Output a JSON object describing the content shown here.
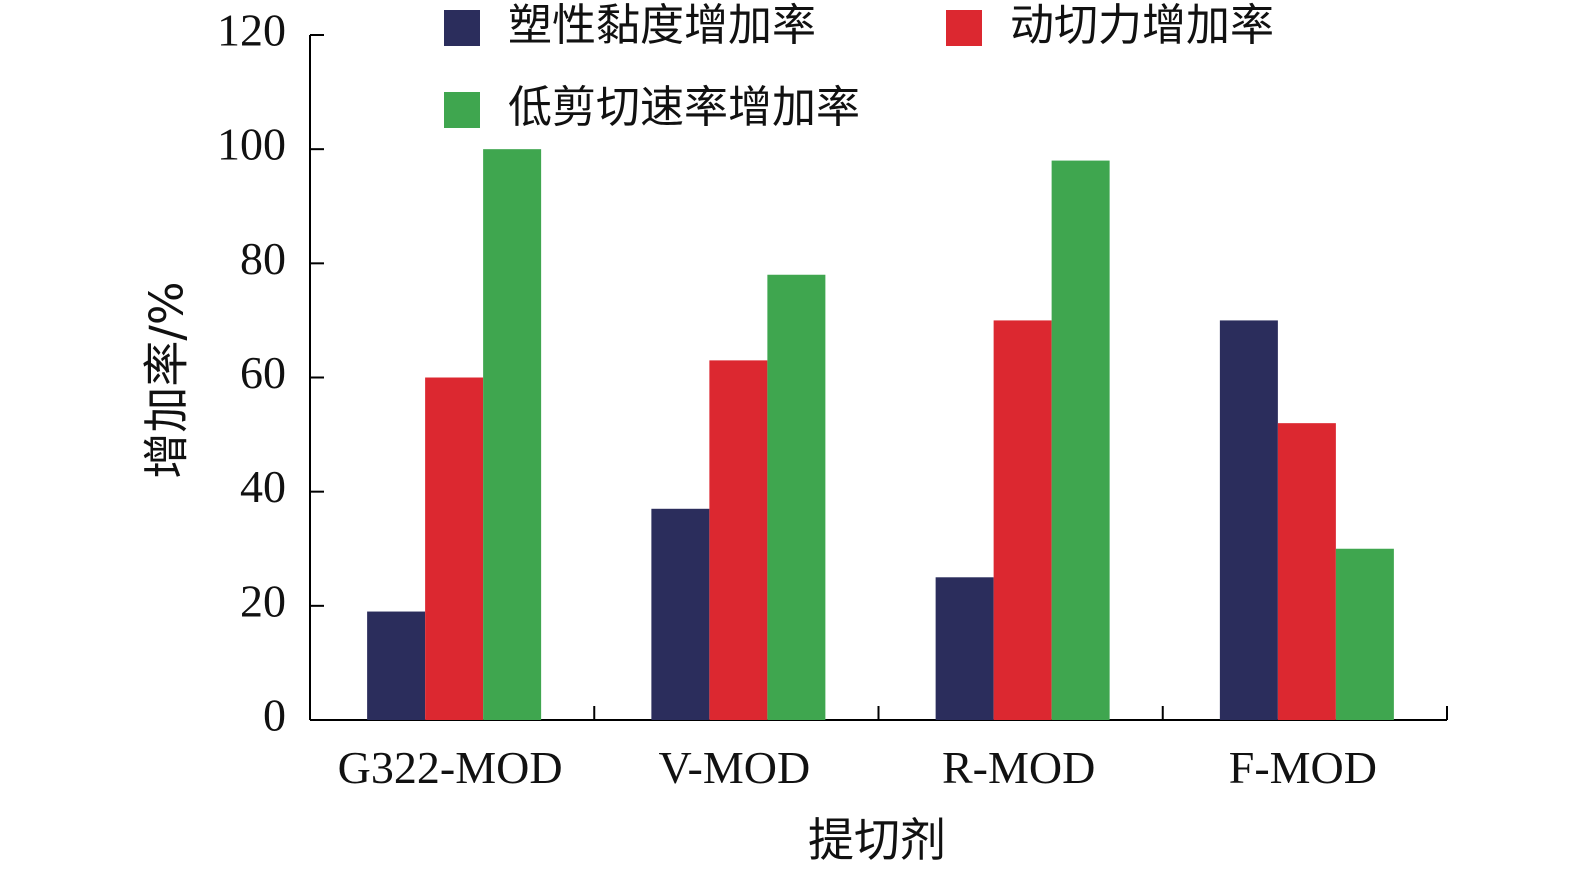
{
  "chart_data": {
    "type": "bar",
    "title": "",
    "xlabel": "提切剂",
    "ylabel": "增加率/%",
    "categories": [
      "G322-MOD",
      "V-MOD",
      "R-MOD",
      "F-MOD"
    ],
    "ylim": [
      0,
      120
    ],
    "yticks": [
      0,
      20,
      40,
      60,
      80,
      100,
      120
    ],
    "grid": false,
    "legend_position": "top",
    "series": [
      {
        "name": "塑性黏度增加率",
        "color": "#2b2d5c",
        "values": [
          19,
          37,
          25,
          70
        ]
      },
      {
        "name": "动切力增加率",
        "color": "#dc2830",
        "values": [
          60,
          63,
          70,
          52
        ]
      },
      {
        "name": "低剪切速率增加率",
        "color": "#3fa64f",
        "values": [
          100,
          78,
          98,
          30
        ]
      }
    ]
  }
}
